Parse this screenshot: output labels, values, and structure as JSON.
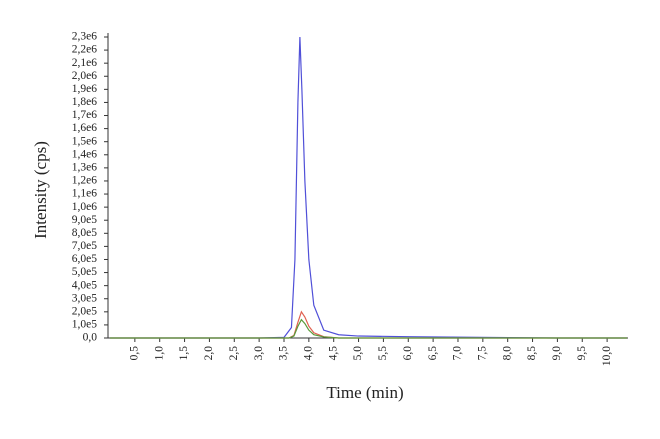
{
  "chart_data": {
    "type": "line",
    "x_label": "Time (min)",
    "y_label": "Intensity (cps)",
    "xlim": [
      0,
      10.4
    ],
    "ylim": [
      0,
      2300000
    ],
    "xticks": [
      {
        "value": 0.5,
        "label": "0,5"
      },
      {
        "value": 1.0,
        "label": "1,0"
      },
      {
        "value": 1.5,
        "label": "1,5"
      },
      {
        "value": 2.0,
        "label": "2,0"
      },
      {
        "value": 2.5,
        "label": "2,5"
      },
      {
        "value": 3.0,
        "label": "3,0"
      },
      {
        "value": 3.5,
        "label": "3,5"
      },
      {
        "value": 4.0,
        "label": "4,0"
      },
      {
        "value": 4.5,
        "label": "4,5"
      },
      {
        "value": 5.0,
        "label": "5,0"
      },
      {
        "value": 5.5,
        "label": "5,5"
      },
      {
        "value": 6.0,
        "label": "6,0"
      },
      {
        "value": 6.5,
        "label": "6,5"
      },
      {
        "value": 7.0,
        "label": "7,0"
      },
      {
        "value": 7.5,
        "label": "7,5"
      },
      {
        "value": 8.0,
        "label": "8,0"
      },
      {
        "value": 8.5,
        "label": "8,5"
      },
      {
        "value": 9.0,
        "label": "9,0"
      },
      {
        "value": 9.5,
        "label": "9,5"
      },
      {
        "value": 10.0,
        "label": "10,0"
      }
    ],
    "yticks": [
      {
        "value": 0,
        "label": "0,0"
      },
      {
        "value": 100000,
        "label": "1,0e5"
      },
      {
        "value": 200000,
        "label": "2,0e5"
      },
      {
        "value": 300000,
        "label": "3,0e5"
      },
      {
        "value": 400000,
        "label": "4,0e5"
      },
      {
        "value": 500000,
        "label": "5,0e5"
      },
      {
        "value": 600000,
        "label": "6,0e5"
      },
      {
        "value": 700000,
        "label": "7,0e5"
      },
      {
        "value": 800000,
        "label": "8,0e5"
      },
      {
        "value": 900000,
        "label": "9,0e5"
      },
      {
        "value": 1000000,
        "label": "1,0e6"
      },
      {
        "value": 1100000,
        "label": "1,1e6"
      },
      {
        "value": 1200000,
        "label": "1,2e6"
      },
      {
        "value": 1300000,
        "label": "1,3e6"
      },
      {
        "value": 1400000,
        "label": "1,4e6"
      },
      {
        "value": 1500000,
        "label": "1,5e6"
      },
      {
        "value": 1600000,
        "label": "1,6e6"
      },
      {
        "value": 1700000,
        "label": "1,7e6"
      },
      {
        "value": 1800000,
        "label": "1,8e6"
      },
      {
        "value": 1900000,
        "label": "1,9e6"
      },
      {
        "value": 2000000,
        "label": "2,0e6"
      },
      {
        "value": 2100000,
        "label": "2,1e6"
      },
      {
        "value": 2200000,
        "label": "2,2e6"
      },
      {
        "value": 2300000,
        "label": "2,3e6"
      }
    ],
    "series": [
      {
        "color": "#5050d8",
        "x": [
          0,
          3.0,
          3.5,
          3.65,
          3.72,
          3.78,
          3.82,
          3.86,
          3.92,
          4.0,
          4.1,
          4.3,
          4.6,
          5.0,
          6.0,
          9.0,
          10.4
        ],
        "values": [
          0,
          0,
          5000,
          80000,
          600000,
          1800000,
          2300000,
          1900000,
          1200000,
          600000,
          250000,
          60000,
          25000,
          15000,
          10000,
          0,
          0
        ]
      },
      {
        "color": "#e06050",
        "x": [
          0,
          3.6,
          3.7,
          3.78,
          3.85,
          3.92,
          4.0,
          4.1,
          4.3,
          4.6,
          10.4
        ],
        "values": [
          0,
          0,
          20000,
          120000,
          200000,
          160000,
          90000,
          40000,
          10000,
          0,
          0
        ]
      },
      {
        "color": "#5a9a3a",
        "x": [
          0,
          3.6,
          3.7,
          3.78,
          3.85,
          3.92,
          4.0,
          4.1,
          4.3,
          4.6,
          10.4
        ],
        "values": [
          0,
          0,
          15000,
          90000,
          140000,
          110000,
          60000,
          25000,
          8000,
          0,
          0
        ]
      }
    ]
  }
}
